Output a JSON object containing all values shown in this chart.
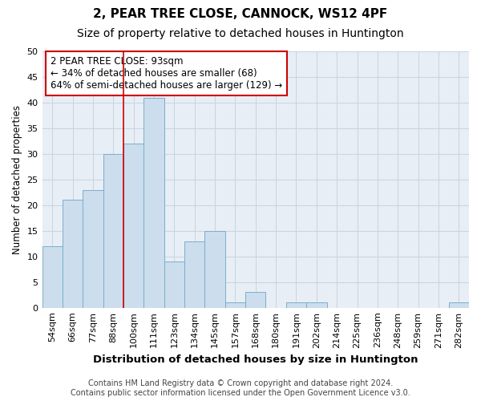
{
  "title1": "2, PEAR TREE CLOSE, CANNOCK, WS12 4PF",
  "title2": "Size of property relative to detached houses in Huntington",
  "xlabel": "Distribution of detached houses by size in Huntington",
  "ylabel": "Number of detached properties",
  "categories": [
    "54sqm",
    "66sqm",
    "77sqm",
    "88sqm",
    "100sqm",
    "111sqm",
    "123sqm",
    "134sqm",
    "145sqm",
    "157sqm",
    "168sqm",
    "180sqm",
    "191sqm",
    "202sqm",
    "214sqm",
    "225sqm",
    "236sqm",
    "248sqm",
    "259sqm",
    "271sqm",
    "282sqm"
  ],
  "values": [
    12,
    21,
    23,
    30,
    32,
    41,
    9,
    13,
    15,
    1,
    3,
    0,
    1,
    1,
    0,
    0,
    0,
    0,
    0,
    0,
    1
  ],
  "bar_color": "#ccdded",
  "bar_edge_color": "#7aafc8",
  "bar_edge_width": 0.7,
  "vline_x": 3.5,
  "vline_color": "#cc0000",
  "vline_linewidth": 1.2,
  "annotation_box_text": "2 PEAR TREE CLOSE: 93sqm\n← 34% of detached houses are smaller (68)\n64% of semi-detached houses are larger (129) →",
  "annotation_box_color": "white",
  "annotation_box_edge_color": "#cc0000",
  "ylim": [
    0,
    50
  ],
  "yticks": [
    0,
    5,
    10,
    15,
    20,
    25,
    30,
    35,
    40,
    45,
    50
  ],
  "grid_color": "#c8d4e0",
  "background_color": "#e8eef5",
  "footer1": "Contains HM Land Registry data © Crown copyright and database right 2024.",
  "footer2": "Contains public sector information licensed under the Open Government Licence v3.0.",
  "title1_fontsize": 11,
  "title2_fontsize": 10,
  "xlabel_fontsize": 9.5,
  "ylabel_fontsize": 8.5,
  "tick_fontsize": 8,
  "annotation_fontsize": 8.5,
  "footer_fontsize": 7
}
